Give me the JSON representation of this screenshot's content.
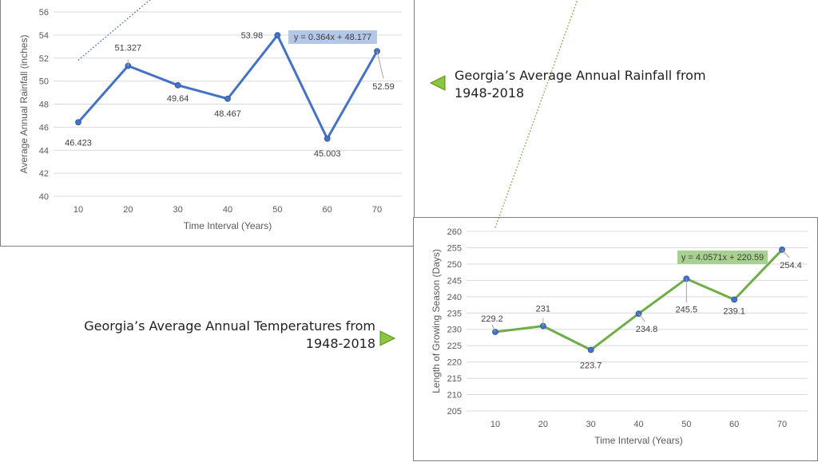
{
  "colors": {
    "rain_line": "#4472c4",
    "grow_line": "#70ad47",
    "rain_eq_bg": "#b4c7e7",
    "grow_eq_bg": "#a9d18e",
    "grid": "#d9d9d9",
    "arrow": "#8cc63f",
    "arrow_stroke": "#5a8a1f"
  },
  "icons": {
    "rain_caption_arrow": "triangle-left-icon",
    "temp_caption_arrow": "triangle-right-icon"
  },
  "captions": {
    "rainfall": "Georgia’s Average Annual Rainfall from 1948-2018",
    "temperatures": "Georgia’s Average Annual Temperatures from 1948-2018"
  },
  "chart_data": [
    {
      "type": "line",
      "title": "",
      "xlabel": "Time Interval (Years)",
      "ylabel": "Average Annual Rainfall (inches)",
      "x": [
        10,
        20,
        30,
        40,
        50,
        60,
        70
      ],
      "values": [
        46.423,
        51.327,
        49.64,
        48.467,
        53.98,
        45.003,
        52.59
      ],
      "labels": [
        "46.423",
        "51.327",
        "49.64",
        "48.467",
        "53.98",
        "45.003",
        "52.59"
      ],
      "ylim": [
        40,
        56
      ],
      "yticks": [
        "40",
        "42",
        "44",
        "46",
        "48",
        "50",
        "52",
        "54",
        "56"
      ],
      "xticks": [
        "10",
        "20",
        "30",
        "40",
        "50",
        "60",
        "70"
      ],
      "grid": true,
      "trendline": {
        "slope": 0.364,
        "intercept": 48.177,
        "equation": "y = 0.364x + 48.177"
      }
    },
    {
      "type": "line",
      "title": "",
      "xlabel": "Time Interval (Years)",
      "ylabel": "Length of Growing Season (Days)",
      "x": [
        10,
        20,
        30,
        40,
        50,
        60,
        70
      ],
      "values": [
        229.2,
        231,
        223.7,
        234.8,
        245.5,
        239.1,
        254.4
      ],
      "labels": [
        "229.2",
        "231",
        "223.7",
        "234.8",
        "245.5",
        "239.1",
        "254.4"
      ],
      "ylim": [
        205,
        260
      ],
      "yticks": [
        "205",
        "210",
        "215",
        "220",
        "225",
        "230",
        "235",
        "240",
        "245",
        "250",
        "255",
        "260"
      ],
      "xticks": [
        "10",
        "20",
        "30",
        "40",
        "50",
        "60",
        "70"
      ],
      "grid": true,
      "trendline": {
        "slope": 4.0571,
        "intercept": 220.59,
        "equation": "y = 4.0571x + 220.59"
      }
    }
  ]
}
